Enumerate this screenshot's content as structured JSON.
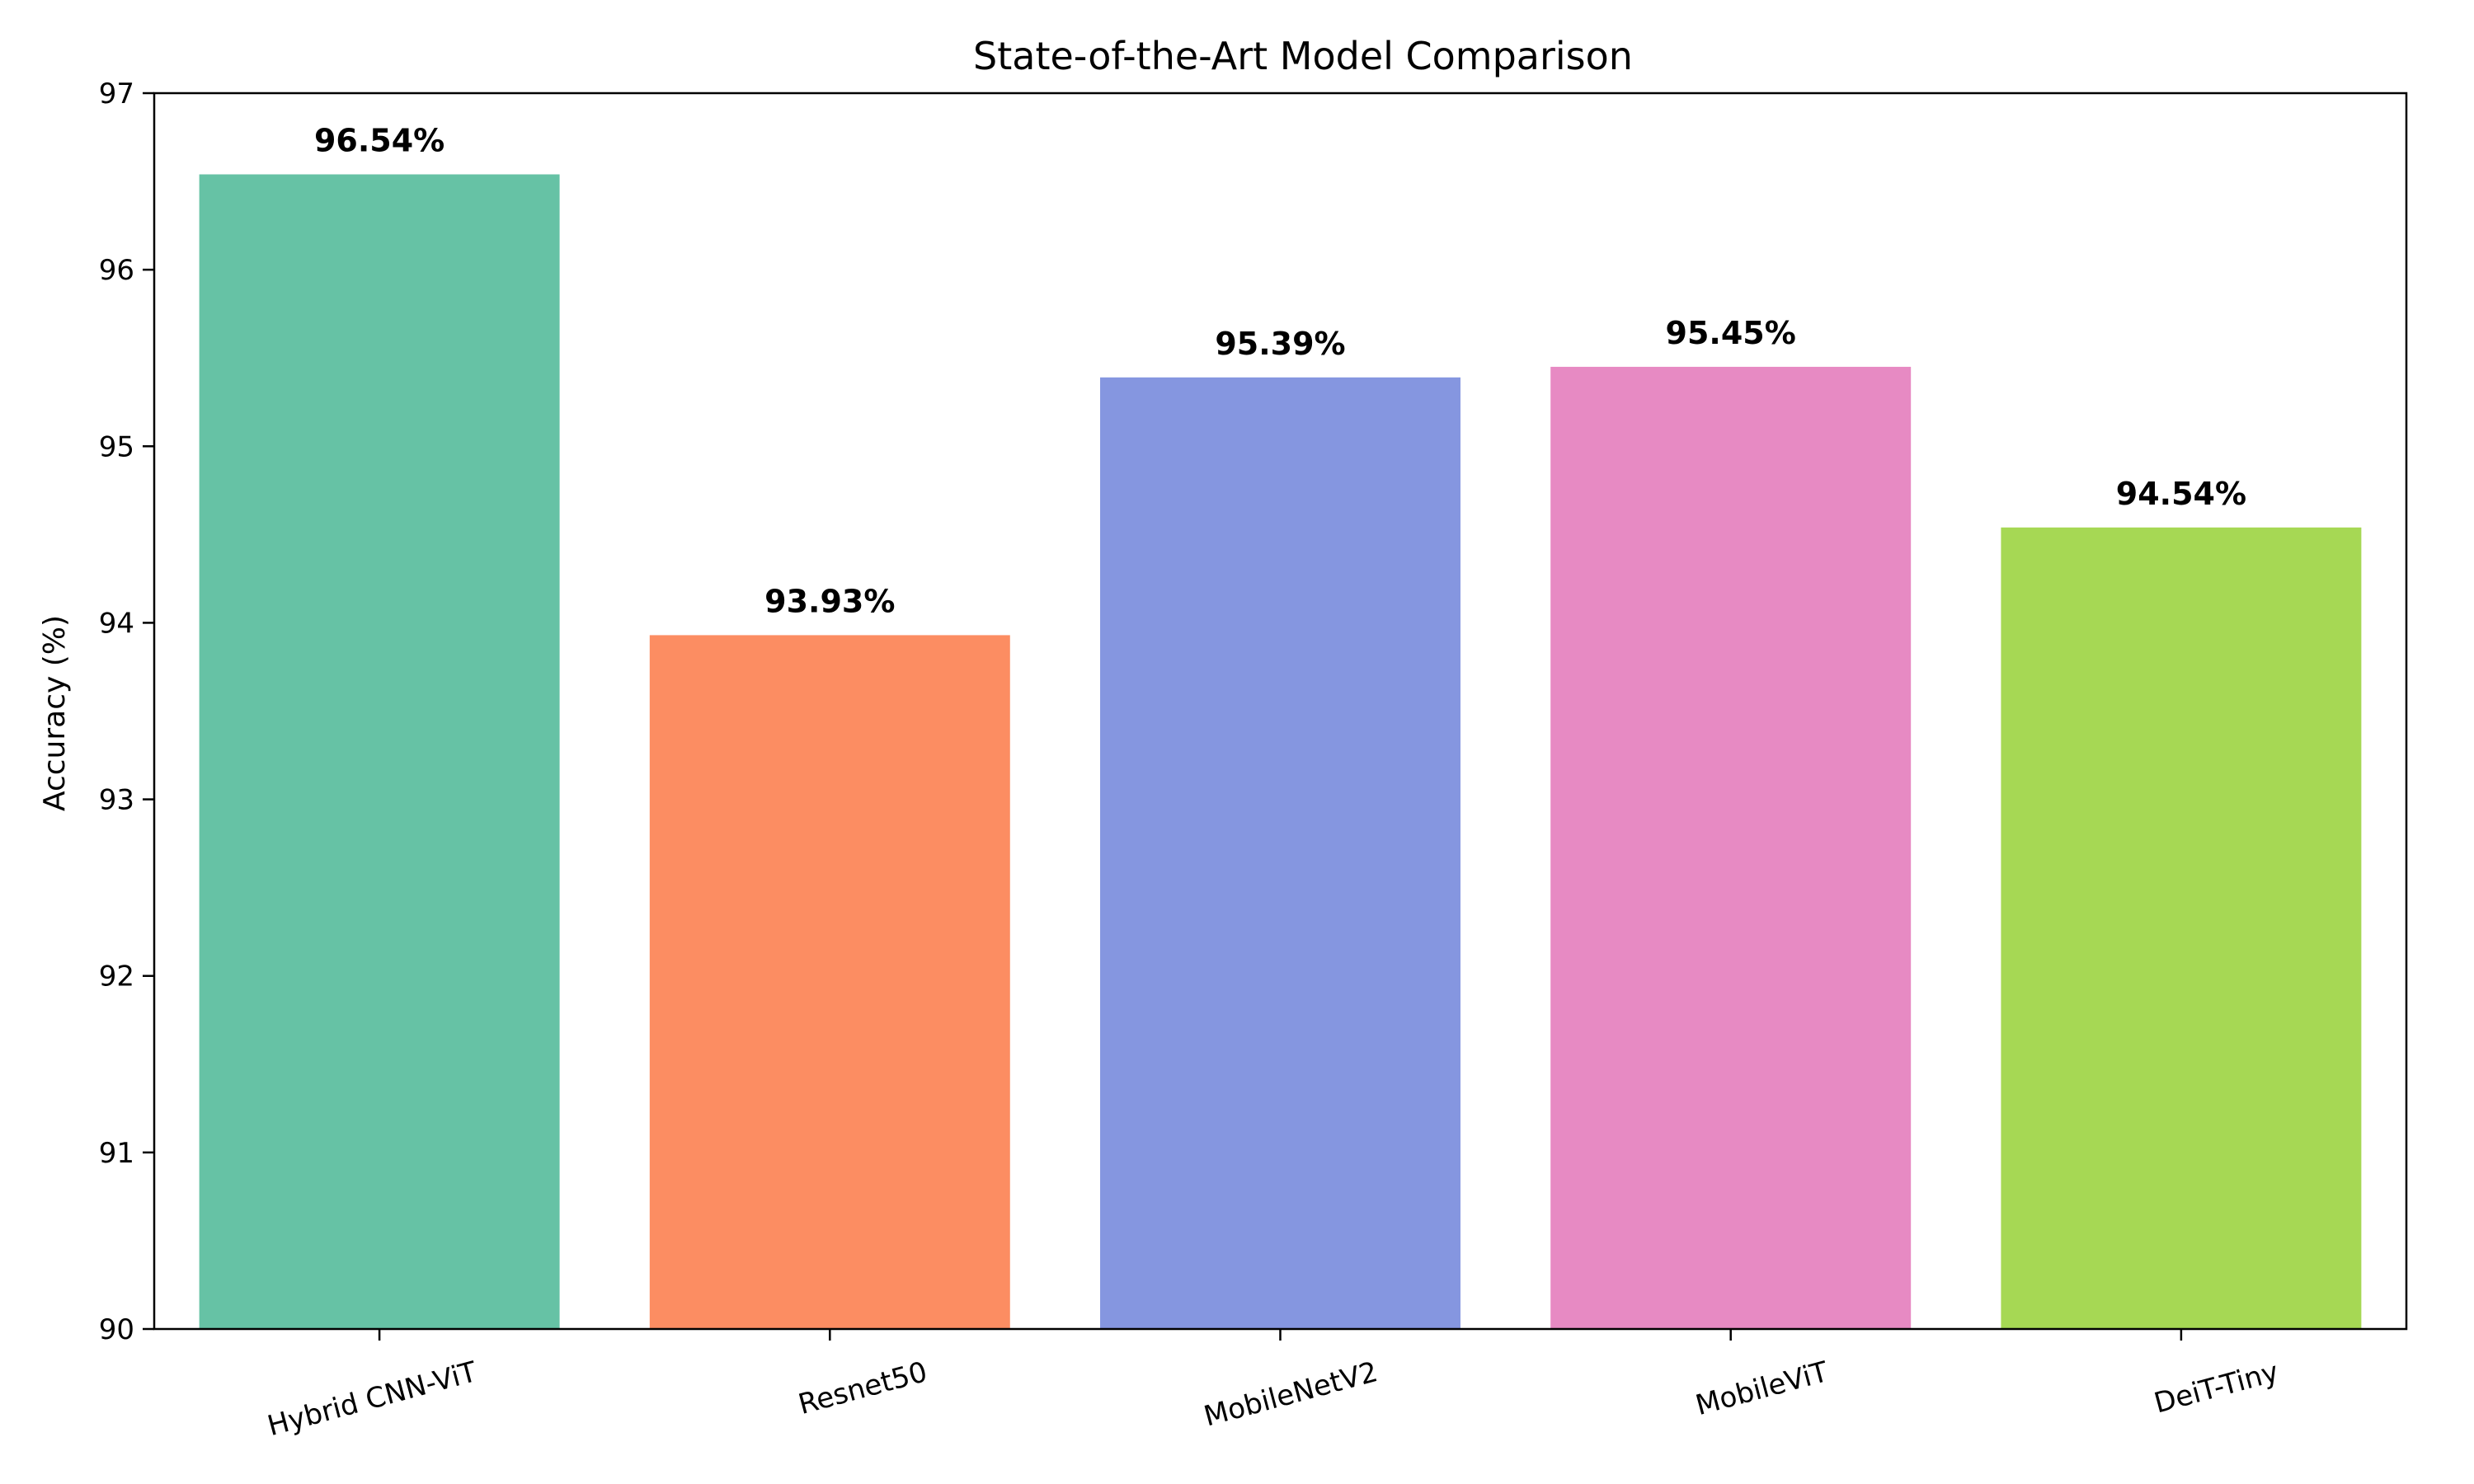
{
  "chart_data": {
    "type": "bar",
    "title": "State-of-the-Art Model Comparison",
    "xlabel": "",
    "ylabel": "Accuracy (%)",
    "ylim": [
      90,
      97
    ],
    "yticks": [
      90,
      91,
      92,
      93,
      94,
      95,
      96,
      97
    ],
    "categories": [
      "Hybrid CNN-ViT",
      "Resnet50",
      "MobileNetV2",
      "MobileViT",
      "DeiT-Tiny"
    ],
    "values": [
      96.54,
      93.93,
      95.39,
      95.45,
      94.54
    ],
    "value_labels": [
      "96.54%",
      "93.93%",
      "95.39%",
      "95.45%",
      "94.54%"
    ],
    "colors": [
      "#66c2a5",
      "#fc8d62",
      "#8596e0",
      "#e78ac3",
      "#a6d854"
    ],
    "grid": false,
    "legend": "none",
    "xtick_rotation_deg": 15
  }
}
